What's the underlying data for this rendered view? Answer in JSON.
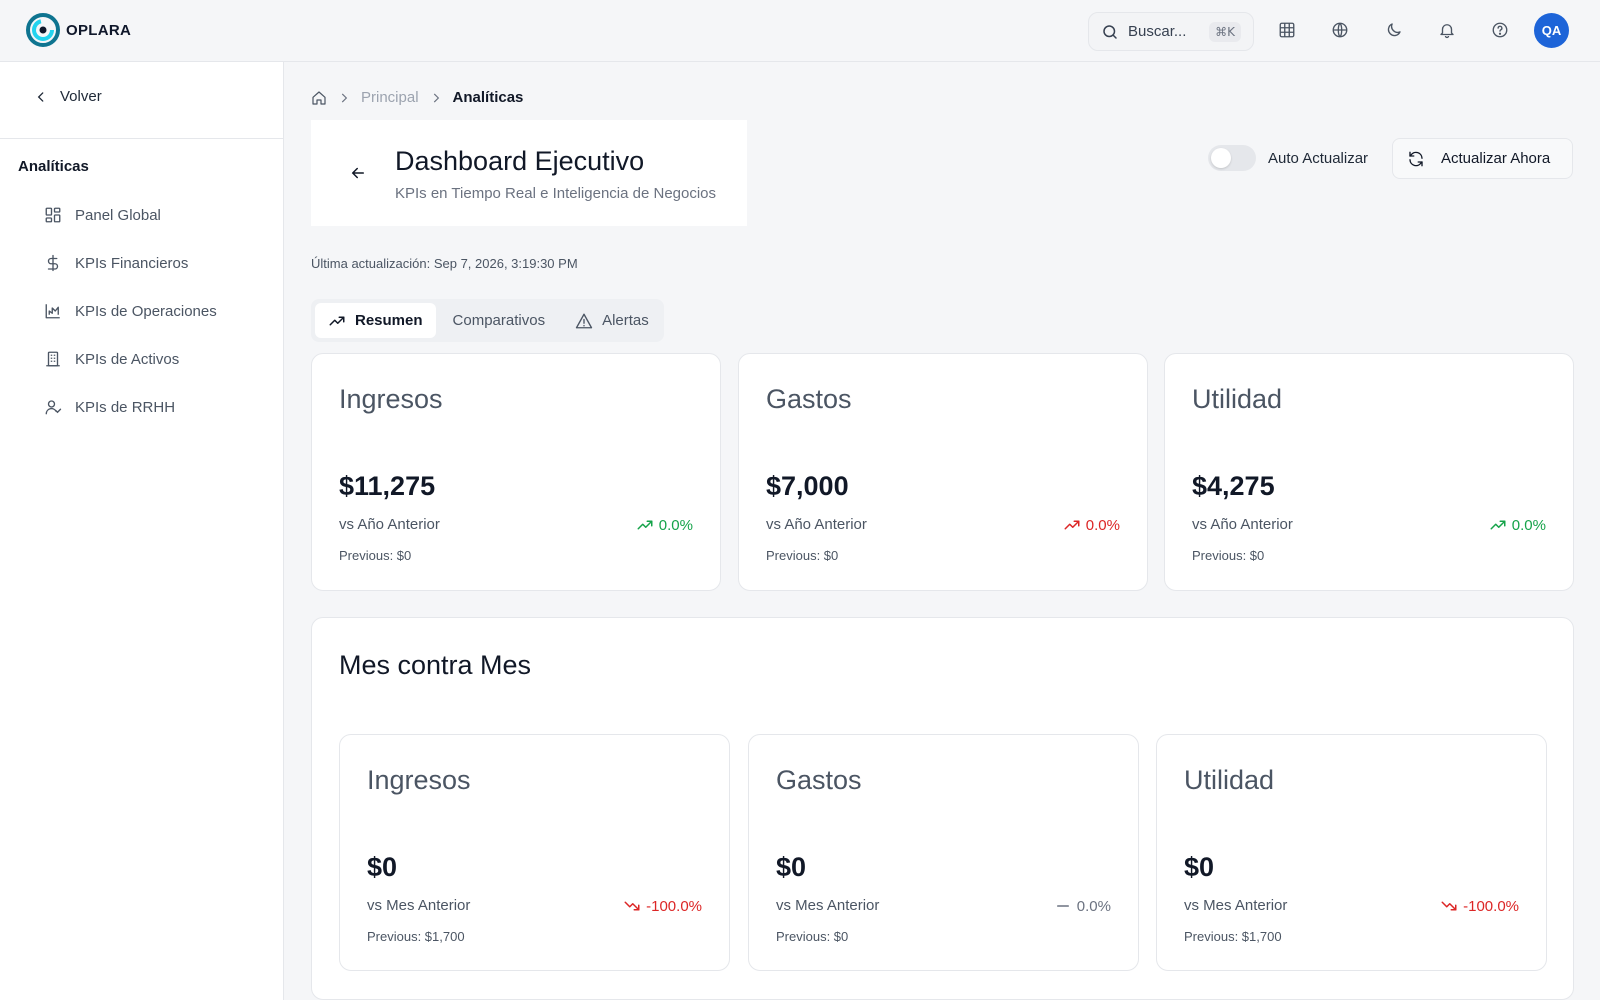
{
  "brand": {
    "name": "OPLARA"
  },
  "header": {
    "search_placeholder": "Buscar...",
    "search_shortcut": "⌘K",
    "icons": [
      "grid-icon",
      "globe-icon",
      "moon-icon",
      "bell-icon",
      "help-icon"
    ],
    "avatar_initials": "QA"
  },
  "sidebar": {
    "back_label": "Volver",
    "section_title": "Analíticas",
    "items": [
      {
        "label": "Panel Global",
        "icon": "dashboard-icon"
      },
      {
        "label": "KPIs Financieros",
        "icon": "dollar-icon"
      },
      {
        "label": "KPIs de Operaciones",
        "icon": "chart-icon"
      },
      {
        "label": "KPIs de Activos",
        "icon": "building-icon"
      },
      {
        "label": "KPIs de RRHH",
        "icon": "user-icon"
      }
    ]
  },
  "breadcrumb": {
    "parent": "Principal",
    "current": "Analíticas"
  },
  "page": {
    "title": "Dashboard Ejecutivo",
    "subtitle": "KPIs en Tiempo Real e Inteligencia de Negocios",
    "auto_refresh_label": "Auto Actualizar",
    "auto_refresh_on": false,
    "refresh_button": "Actualizar Ahora",
    "last_update": "Última actualización: Sep 7, 2026, 3:19:30 PM"
  },
  "tabs": [
    {
      "label": "Resumen",
      "active": true
    },
    {
      "label": "Comparativos",
      "active": false
    },
    {
      "label": "Alertas",
      "active": false
    }
  ],
  "yearly": [
    {
      "label": "Ingresos",
      "value": "$11,275",
      "compare": "vs Año Anterior",
      "change": "0.0%",
      "trend": "up",
      "color": "#16a34a",
      "previous": "Previous: $0"
    },
    {
      "label": "Gastos",
      "value": "$7,000",
      "compare": "vs Año Anterior",
      "change": "0.0%",
      "trend": "up",
      "color": "#dc2626",
      "previous": "Previous: $0"
    },
    {
      "label": "Utilidad",
      "value": "$4,275",
      "compare": "vs Año Anterior",
      "change": "0.0%",
      "trend": "up",
      "color": "#16a34a",
      "previous": "Previous: $0"
    }
  ],
  "monthly": {
    "title": "Mes contra Mes",
    "cards": [
      {
        "label": "Ingresos",
        "value": "$0",
        "compare": "vs Mes Anterior",
        "change": "-100.0%",
        "trend": "down",
        "color": "#dc2626",
        "previous": "Previous: $1,700"
      },
      {
        "label": "Gastos",
        "value": "$0",
        "compare": "vs Mes Anterior",
        "change": "0.0%",
        "trend": "flat",
        "color": "#6b7280",
        "previous": "Previous: $0"
      },
      {
        "label": "Utilidad",
        "value": "$0",
        "compare": "vs Mes Anterior",
        "change": "-100.0%",
        "trend": "down",
        "color": "#dc2626",
        "previous": "Previous: $1,700"
      }
    ]
  }
}
